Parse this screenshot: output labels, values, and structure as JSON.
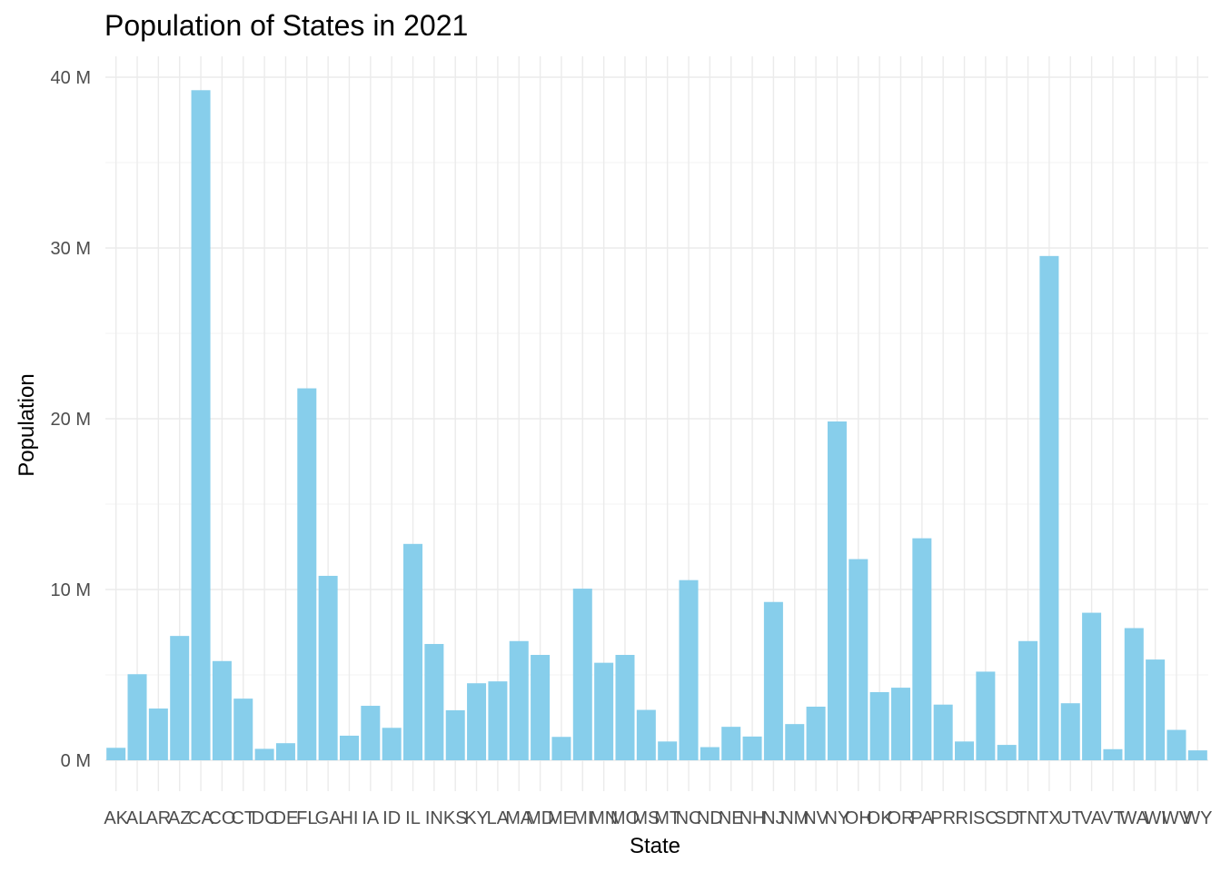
{
  "chart_data": {
    "type": "bar",
    "title": "Population of States in 2021",
    "xlabel": "State",
    "ylabel": "Population",
    "ylim": [
      -1.8,
      41.2
    ],
    "y_ticks": [
      0,
      10,
      20,
      30,
      40
    ],
    "y_tick_labels": [
      "0 M",
      "10 M",
      "20 M",
      "30 M",
      "40 M"
    ],
    "grid": true,
    "bar_color": "#87CEEB",
    "grid_major_color": "#EBEBEB",
    "grid_minor_color": "#F3F3F3",
    "categories": [
      "AK",
      "AL",
      "AR",
      "AZ",
      "CA",
      "CO",
      "CT",
      "DC",
      "DE",
      "FL",
      "GA",
      "HI",
      "IA",
      "ID",
      "IL",
      "IN",
      "KS",
      "KY",
      "LA",
      "MA",
      "MD",
      "ME",
      "MI",
      "MN",
      "MO",
      "MS",
      "MT",
      "NC",
      "ND",
      "NE",
      "NH",
      "NJ",
      "NM",
      "NV",
      "NY",
      "OH",
      "OK",
      "OR",
      "PA",
      "PR",
      "RI",
      "SC",
      "SD",
      "TN",
      "TX",
      "UT",
      "VA",
      "VT",
      "WA",
      "WI",
      "WV",
      "WY"
    ],
    "values": [
      0.73,
      5.04,
      3.03,
      7.28,
      39.24,
      5.81,
      3.61,
      0.67,
      1.0,
      21.78,
      10.8,
      1.44,
      3.19,
      1.9,
      12.67,
      6.81,
      2.93,
      4.51,
      4.62,
      6.98,
      6.17,
      1.37,
      10.05,
      5.71,
      6.17,
      2.95,
      1.1,
      10.55,
      0.77,
      1.96,
      1.39,
      9.27,
      2.12,
      3.14,
      19.84,
      11.78,
      3.99,
      4.25,
      13.0,
      3.26,
      1.1,
      5.19,
      0.9,
      6.98,
      29.53,
      3.34,
      8.64,
      0.65,
      7.74,
      5.9,
      1.78,
      0.58
    ],
    "y_unit": "M"
  }
}
